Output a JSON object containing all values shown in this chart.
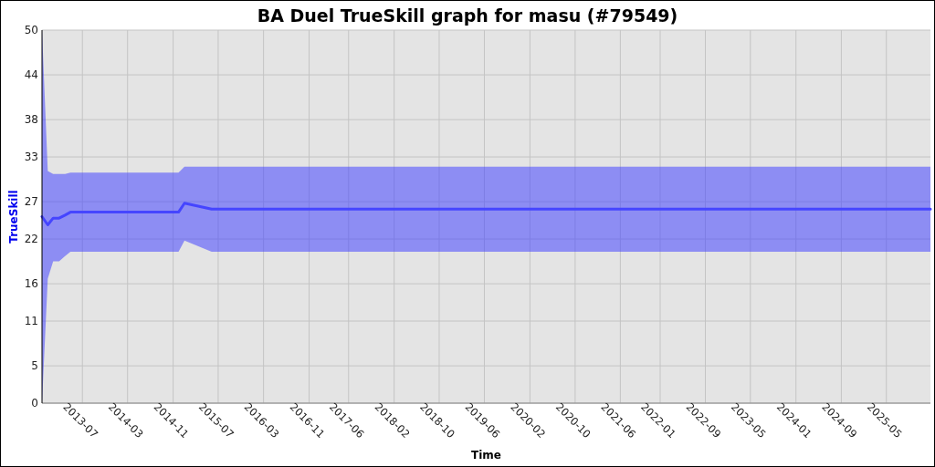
{
  "chart_data": {
    "type": "line",
    "title": "BA Duel TrueSkill graph for masu (#79549)",
    "xlabel": "Time",
    "ylabel": "TrueSkill",
    "x": [
      "2012-11-26",
      "2012-12-27",
      "2013-01-25",
      "2013-02-26",
      "2013-03-30",
      "2013-04-28",
      "2014-11-30",
      "2015-01-01",
      "2015-05-27",
      "2025-12-24"
    ],
    "series": [
      {
        "color": "#4545ff",
        "values": [
          25,
          23.9,
          24.8,
          24.8,
          25.2,
          25.6,
          25.6,
          26.8,
          26.0,
          26.0
        ],
        "lower": [
          0,
          16.7,
          19.0,
          19.0,
          19.7,
          20.3,
          20.3,
          21.8,
          20.3,
          20.3
        ],
        "upper": [
          50,
          31.1,
          30.7,
          30.7,
          30.7,
          30.9,
          30.9,
          31.7,
          31.7,
          31.7
        ]
      }
    ],
    "xlim": [
      "2012-11-26",
      "2025-12-24"
    ],
    "ylim": [
      0,
      50
    ],
    "xticks": [
      "2013-07",
      "2014-03",
      "2014-11",
      "2015-07",
      "2016-03",
      "2016-11",
      "2017-06",
      "2018-02",
      "2018-10",
      "2019-06",
      "2020-02",
      "2020-10",
      "2021-06",
      "2022-01",
      "2022-09",
      "2023-05",
      "2024-01",
      "2024-09",
      "2025-05"
    ],
    "yticks": [
      0,
      5,
      11,
      16,
      22,
      27,
      33,
      38,
      44,
      50
    ],
    "grid": true
  }
}
